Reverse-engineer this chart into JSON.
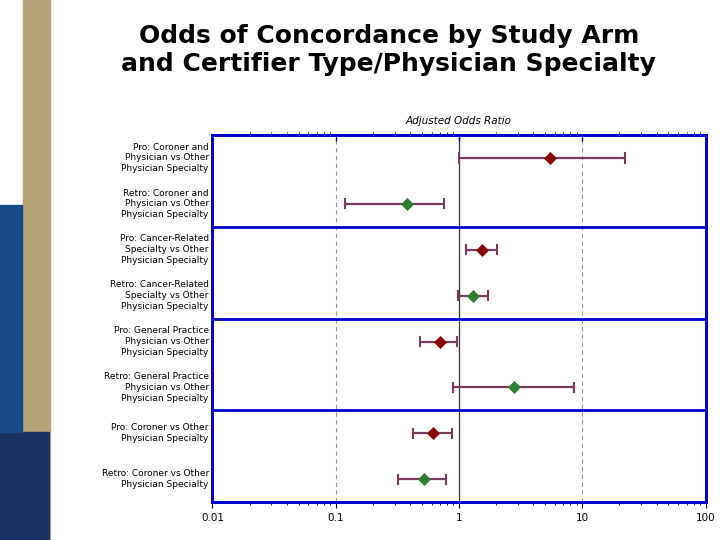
{
  "title": "Odds of Concordance by Study Arm\nand Certifier Type/Physician Specialty",
  "title_fontsize": 18,
  "xlabel": "Adjusted Odds Ratio",
  "xticks": [
    0.01,
    0.1,
    1,
    10,
    100
  ],
  "xtick_labels": [
    "0.01",
    "0.1",
    "1",
    "10",
    "100"
  ],
  "vlines_dashed": [
    0.1,
    10
  ],
  "vline_solid": 1,
  "rows": [
    {
      "label": "Pro: Coroner and\nPhysician vs Other\nPhysician Specialty",
      "estimate": 5.5,
      "ci_low": 1.0,
      "ci_high": 22.0,
      "marker_color": "#8B0000",
      "pro": true
    },
    {
      "label": "Retro: Coroner and\nPhysician vs Other\nPhysician Specialty",
      "estimate": 0.38,
      "ci_low": 0.12,
      "ci_high": 0.75,
      "marker_color": "#2E7D32",
      "pro": false
    },
    {
      "label": "Pro: Cancer-Related\nSpecialty vs Other\nPhysician Specialty",
      "estimate": 1.55,
      "ci_low": 1.15,
      "ci_high": 2.05,
      "marker_color": "#8B0000",
      "pro": true
    },
    {
      "label": "Retro: Cancer-Related\nSpecialty vs Other\nPhysician Specialty",
      "estimate": 1.3,
      "ci_low": 0.98,
      "ci_high": 1.72,
      "marker_color": "#2E7D32",
      "pro": false
    },
    {
      "label": "Pro: General Practice\nPhysician vs Other\nPhysician Specialty",
      "estimate": 0.7,
      "ci_low": 0.48,
      "ci_high": 0.97,
      "marker_color": "#8B0000",
      "pro": true
    },
    {
      "label": "Retro: General Practice\nPhysician vs Other\nPhysician Specialty",
      "estimate": 2.8,
      "ci_low": 0.9,
      "ci_high": 8.5,
      "marker_color": "#2E7D32",
      "pro": false
    },
    {
      "label": "Pro: Coroner vs Other\nPhysician Specialty",
      "estimate": 0.62,
      "ci_low": 0.42,
      "ci_high": 0.88,
      "marker_color": "#8B0000",
      "pro": true
    },
    {
      "label": "Retro: Coroner vs Other\nPhysician Specialty",
      "estimate": 0.52,
      "ci_low": 0.32,
      "ci_high": 0.78,
      "marker_color": "#2E7D32",
      "pro": false
    }
  ],
  "group_dividers": [
    1.5,
    3.5,
    5.5
  ],
  "border_color": "#0000CC",
  "dashed_vline_color": "#999999",
  "solid_vline_color": "#333333",
  "bar_color": "#7B3B5E",
  "bg_color": "#FFFFFF",
  "label_fontsize": 6.5,
  "tick_fontsize": 7.5,
  "sidebar_tan": "#B5A47A",
  "sidebar_blue_dark": "#1a3060",
  "sidebar_blue_mid": "#1a4a8a",
  "sidebar_blue_light": "#2266bb"
}
